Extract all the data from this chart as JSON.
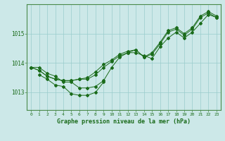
{
  "xlabel": "Graphe pression niveau de la mer (hPa)",
  "bg_color": "#cce8e8",
  "plot_bg_color": "#cce8e8",
  "grid_color": "#99cccc",
  "line_color": "#1a6b1a",
  "xlim": [
    -0.5,
    23.5
  ],
  "ylim": [
    1012.4,
    1016.0
  ],
  "yticks": [
    1013,
    1014,
    1015
  ],
  "xticks": [
    0,
    1,
    2,
    3,
    4,
    5,
    6,
    7,
    8,
    9,
    10,
    11,
    12,
    13,
    14,
    15,
    16,
    17,
    18,
    19,
    20,
    21,
    22,
    23
  ],
  "line1_x": [
    0,
    1,
    2,
    3,
    4,
    5,
    6,
    7,
    8,
    9,
    10,
    11,
    12,
    13,
    14,
    15,
    16,
    17,
    18,
    19,
    20,
    21,
    22,
    23
  ],
  "line1_y": [
    1013.85,
    1013.85,
    1013.65,
    1013.55,
    1013.35,
    1013.35,
    1013.15,
    1013.15,
    1013.2,
    1013.4,
    1013.85,
    1014.2,
    1014.35,
    1014.35,
    1014.25,
    1014.15,
    1014.55,
    1014.85,
    1015.05,
    1014.85,
    1015.05,
    1015.35,
    1015.65,
    1015.55
  ],
  "line2_x": [
    0,
    1,
    2,
    3,
    4,
    5,
    6,
    7,
    8,
    9,
    10,
    11,
    12,
    13,
    14,
    15,
    16,
    17,
    18,
    19,
    20,
    21,
    22,
    23
  ],
  "line2_y": [
    1013.85,
    1013.75,
    1013.55,
    1013.45,
    1013.4,
    1013.4,
    1013.45,
    1013.45,
    1013.6,
    1013.85,
    1014.05,
    1014.25,
    1014.35,
    1014.45,
    1014.2,
    1014.3,
    1014.65,
    1015.05,
    1015.15,
    1014.95,
    1015.15,
    1015.55,
    1015.7,
    1015.55
  ],
  "line3_x": [
    0,
    1,
    2,
    3,
    4,
    5,
    6,
    7,
    8,
    9,
    10,
    11,
    12,
    13,
    14,
    15,
    16,
    17,
    18,
    19,
    20,
    21,
    22,
    23
  ],
  "line3_y": [
    1013.85,
    1013.75,
    1013.55,
    1013.45,
    1013.4,
    1013.4,
    1013.45,
    1013.5,
    1013.7,
    1013.95,
    1014.1,
    1014.3,
    1014.4,
    1014.45,
    1014.2,
    1014.35,
    1014.7,
    1015.1,
    1015.2,
    1015.0,
    1015.2,
    1015.6,
    1015.75,
    1015.6
  ],
  "line4_x": [
    1,
    2,
    3,
    4,
    5,
    6,
    7,
    8,
    9
  ],
  "line4_y": [
    1013.6,
    1013.45,
    1013.25,
    1013.2,
    1012.95,
    1012.9,
    1012.9,
    1013.0,
    1013.35
  ]
}
